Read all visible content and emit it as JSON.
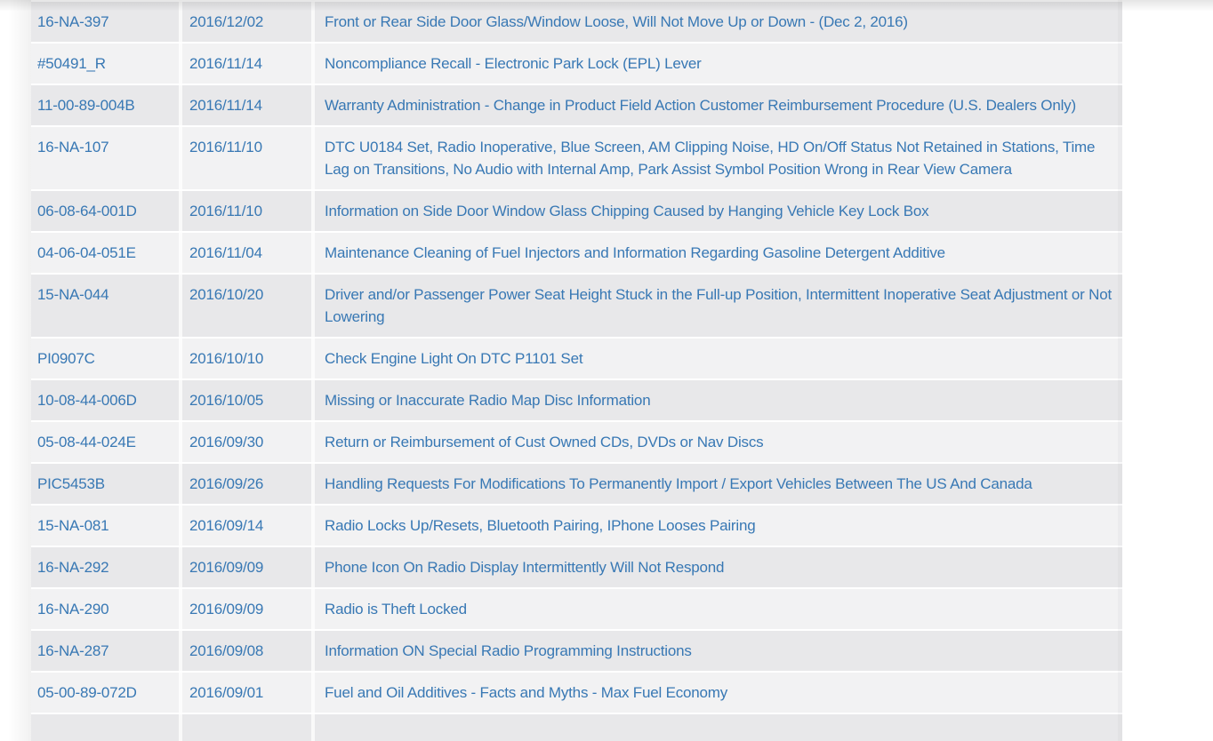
{
  "page": {
    "background_color": "#ffffff"
  },
  "table": {
    "columns": [
      "bulletin_number",
      "date",
      "description"
    ],
    "colors": {
      "row_odd": "#e8e8ea",
      "row_even": "#f2f2f3",
      "link_text": "#3878b4",
      "separator": "#ffffff"
    },
    "rows": [
      {
        "id": "16-NA-397",
        "date": "2016/12/02",
        "description": "Front or Rear Side Door Glass/Window Loose, Will Not Move Up or Down - (Dec 2, 2016)"
      },
      {
        "id": "#50491_R",
        "date": "2016/11/14",
        "description": "Noncompliance Recall - Electronic Park Lock (EPL) Lever"
      },
      {
        "id": "11-00-89-004B",
        "date": "2016/11/14",
        "description": "Warranty Administration - Change in Product Field Action Customer Reimbursement Procedure (U.S. Dealers Only)"
      },
      {
        "id": "16-NA-107",
        "date": "2016/11/10",
        "description": "DTC U0184 Set, Radio Inoperative, Blue Screen, AM Clipping Noise, HD On/Off Status Not Retained in Stations, Time Lag on Transitions, No Audio with Internal Amp, Park Assist Symbol Position Wrong in Rear View Camera"
      },
      {
        "id": "06-08-64-001D",
        "date": "2016/11/10",
        "description": "Information on Side Door Window Glass Chipping Caused by Hanging Vehicle Key Lock Box"
      },
      {
        "id": "04-06-04-051E",
        "date": "2016/11/04",
        "description": "Maintenance Cleaning of Fuel Injectors and Information Regarding Gasoline Detergent Additive"
      },
      {
        "id": "15-NA-044",
        "date": "2016/10/20",
        "description": "Driver and/or Passenger Power Seat Height Stuck in the Full-up Position, Intermittent Inoperative Seat Adjustment or Not Lowering"
      },
      {
        "id": "PI0907C",
        "date": "2016/10/10",
        "description": "Check Engine Light On DTC P1101 Set"
      },
      {
        "id": "10-08-44-006D",
        "date": "2016/10/05",
        "description": "Missing or Inaccurate Radio Map Disc Information"
      },
      {
        "id": "05-08-44-024E",
        "date": "2016/09/30",
        "description": "Return or Reimbursement of Cust Owned CDs, DVDs or Nav Discs"
      },
      {
        "id": "PIC5453B",
        "date": "2016/09/26",
        "description": "Handling Requests For Modifications To Permanently Import / Export Vehicles Between The US And Canada"
      },
      {
        "id": "15-NA-081",
        "date": "2016/09/14",
        "description": "Radio Locks Up/Resets, Bluetooth Pairing, IPhone Looses Pairing"
      },
      {
        "id": "16-NA-292",
        "date": "2016/09/09",
        "description": "Phone Icon On Radio Display Intermittently Will Not Respond"
      },
      {
        "id": "16-NA-290",
        "date": "2016/09/09",
        "description": "Radio is Theft Locked"
      },
      {
        "id": "16-NA-287",
        "date": "2016/09/08",
        "description": "Information ON Special Radio Programming Instructions"
      },
      {
        "id": "05-00-89-072D",
        "date": "2016/09/01",
        "description": "Fuel and Oil Additives - Facts and Myths - Max Fuel Economy"
      }
    ],
    "partial_bottom_row_visible": true
  }
}
